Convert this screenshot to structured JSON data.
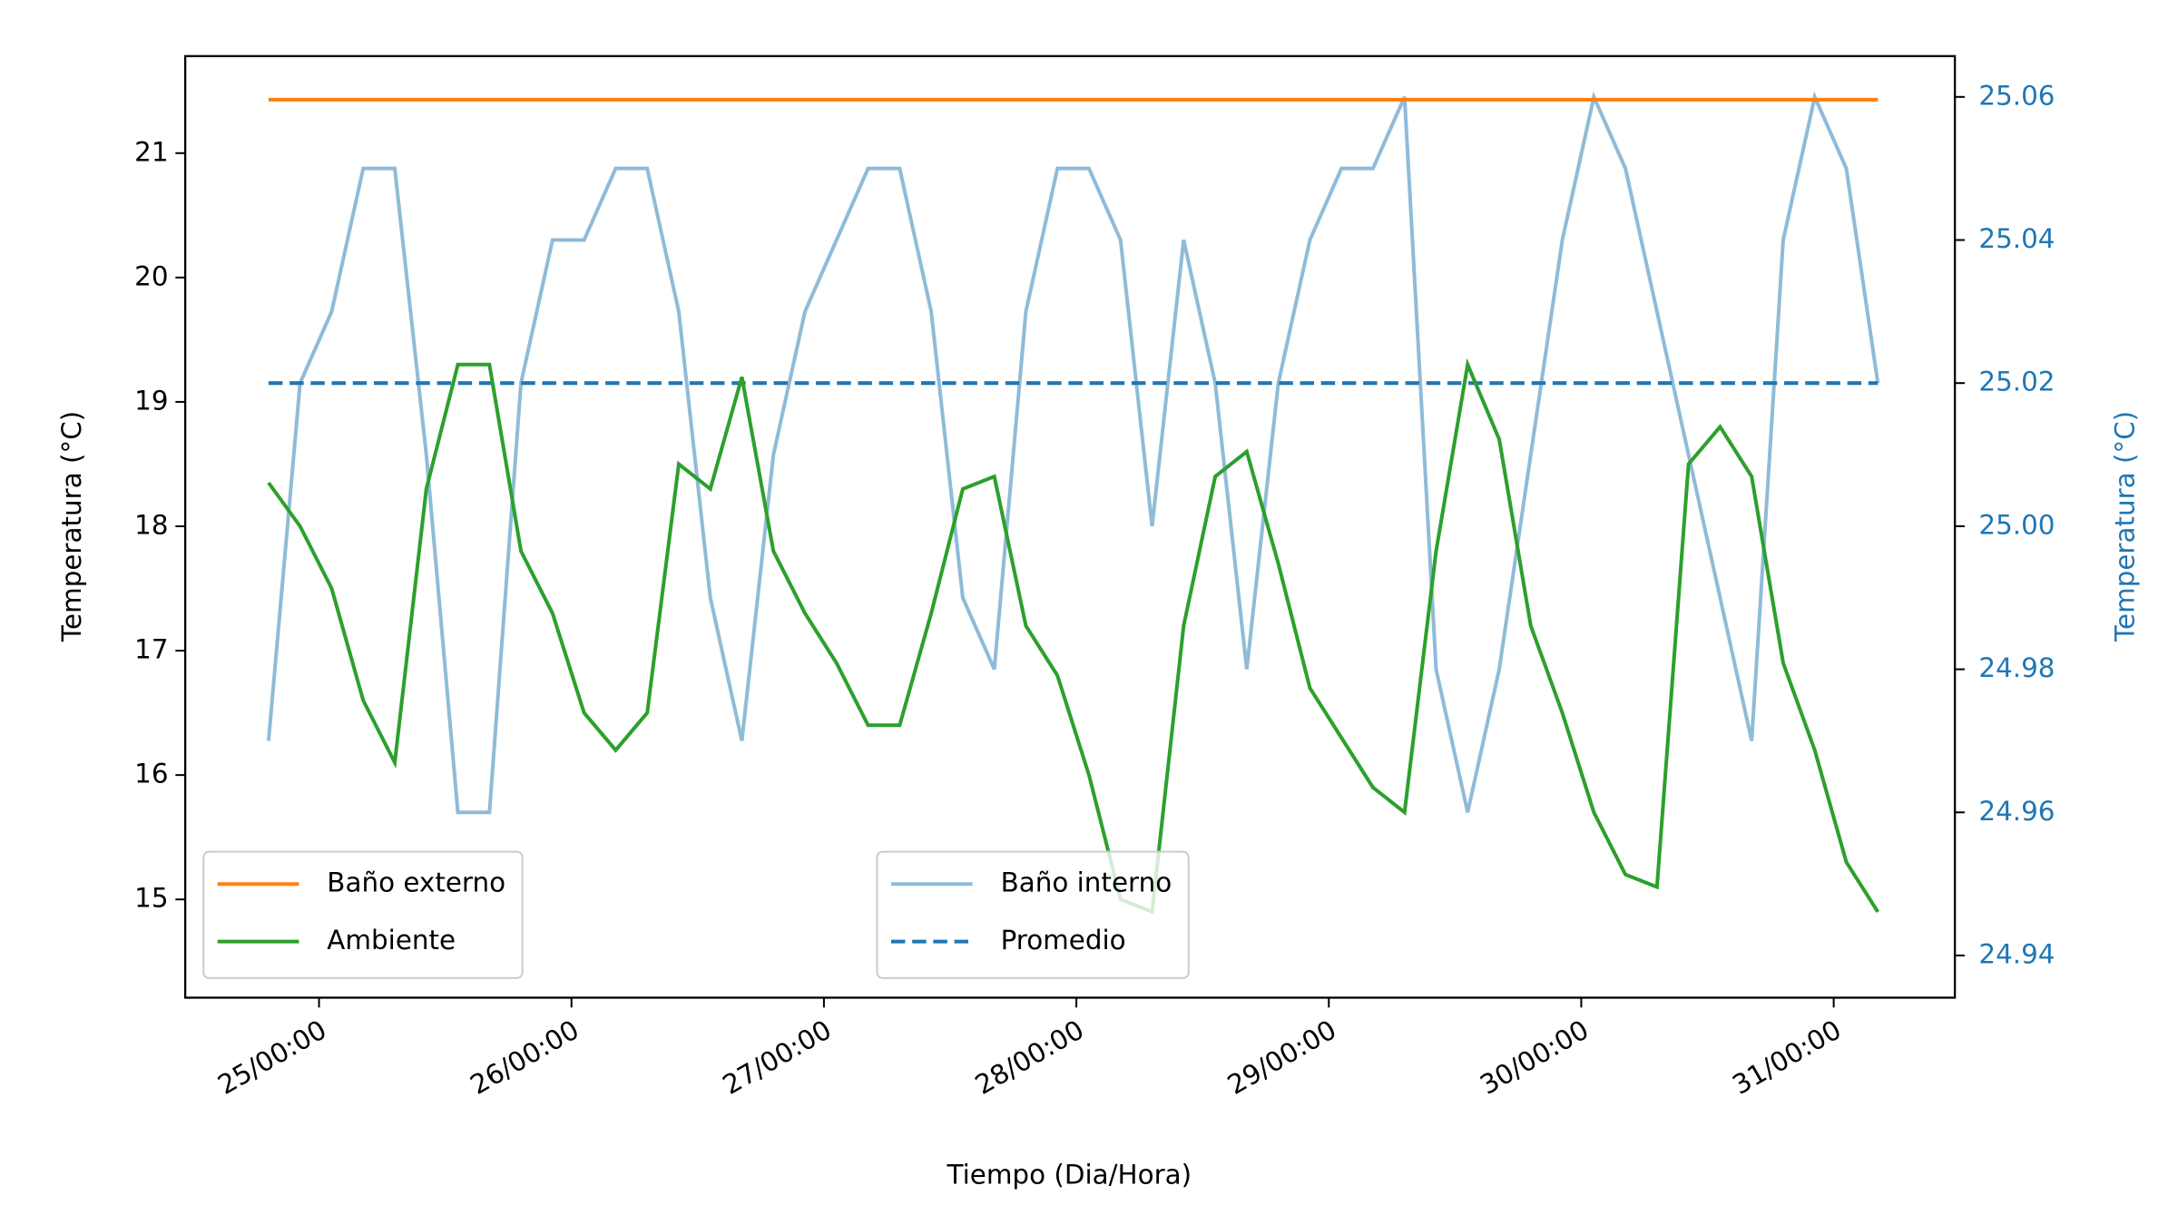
{
  "chart_data": {
    "type": "line",
    "xlabel": "Tiempo (Dia/Hora)",
    "ylabel": "Temperatura ($^\\circ$C)",
    "y2label": "Temperatura ($^\\circ$C)",
    "y2color": "#1f77b4",
    "x": [
      24.8,
      24.925,
      25.05,
      25.175,
      25.3,
      25.425,
      25.55,
      25.675,
      25.8,
      25.925,
      26.05,
      26.175,
      26.3,
      26.425,
      26.55,
      26.675,
      26.8,
      26.925,
      27.05,
      27.175,
      27.3,
      27.425,
      27.55,
      27.675,
      27.8,
      27.925,
      28.05,
      28.175,
      28.3,
      28.425,
      28.55,
      28.675,
      28.8,
      28.925,
      29.05,
      29.175,
      29.3,
      29.425,
      29.55,
      29.675,
      29.8,
      29.925,
      30.05,
      30.175,
      30.3,
      30.425,
      30.55,
      30.675,
      30.8,
      30.925,
      31.05,
      31.175
    ],
    "xlim": [
      24.47,
      31.48
    ],
    "xticks": [
      {
        "value": 25,
        "label": "25/00:00"
      },
      {
        "value": 26,
        "label": "26/00:00"
      },
      {
        "value": 27,
        "label": "27/00:00"
      },
      {
        "value": 28,
        "label": "28/00:00"
      },
      {
        "value": 29,
        "label": "29/00:00"
      },
      {
        "value": 30,
        "label": "30/00:00"
      },
      {
        "value": 31,
        "label": "31/00:00"
      }
    ],
    "ylim": [
      14.21,
      21.78
    ],
    "yticks": [
      15,
      16,
      17,
      18,
      19,
      20,
      21
    ],
    "y2lim": [
      24.9341,
      25.0657
    ],
    "y2ticks": [
      24.94,
      24.96,
      24.98,
      {
        "value": 25,
        "label": "25.00"
      },
      25.02,
      25.04,
      25.06
    ],
    "series": [
      {
        "name": "Baño externo",
        "color": "#ff7f0e",
        "linestyle": "solid",
        "legend_loc": "lower left",
        "values": [
          21.43,
          21.43,
          21.43,
          21.43,
          21.43,
          21.43,
          21.43,
          21.43,
          21.43,
          21.43,
          21.43,
          21.43,
          21.43,
          21.43,
          21.43,
          21.43,
          21.43,
          21.43,
          21.43,
          21.43,
          21.43,
          21.43,
          21.43,
          21.43,
          21.43,
          21.43,
          21.43,
          21.43,
          21.43,
          21.43,
          21.43,
          21.43,
          21.43,
          21.43,
          21.43,
          21.43,
          21.43,
          21.43,
          21.43,
          21.43,
          21.43,
          21.43,
          21.43,
          21.43,
          21.43,
          21.43,
          21.43,
          21.43,
          21.43,
          21.43,
          21.43,
          21.43
        ]
      },
      {
        "name": "Ambiente",
        "color": "#2ca02c",
        "linestyle": "solid",
        "legend_loc": "lower left",
        "values": [
          18.35,
          18.0,
          17.5,
          16.6,
          16.1,
          18.3,
          19.3,
          19.3,
          17.8,
          17.3,
          16.5,
          16.2,
          16.5,
          18.5,
          18.3,
          19.2,
          17.8,
          17.3,
          16.9,
          16.4,
          16.4,
          17.3,
          18.3,
          18.4,
          17.2,
          16.8,
          16.0,
          15.0,
          14.9,
          17.2,
          18.4,
          18.6,
          17.7,
          16.7,
          16.3,
          15.9,
          15.7,
          17.8,
          19.3,
          18.7,
          17.2,
          16.5,
          15.7,
          15.2,
          15.1,
          18.5,
          18.8,
          18.4,
          16.9,
          16.2,
          15.3,
          14.9
        ]
      },
      {
        "name": "Baño interno",
        "color": "#8fbbd9",
        "linestyle": "solid",
        "axis": "y2",
        "legend_loc": "lower center",
        "values": [
          24.97,
          25.02,
          25.03,
          25.05,
          25.05,
          25.01,
          24.96,
          24.96,
          25.02,
          25.04,
          25.04,
          25.05,
          25.05,
          25.03,
          24.99,
          24.97,
          25.01,
          25.03,
          25.04,
          25.05,
          25.05,
          25.03,
          24.99,
          24.98,
          25.03,
          25.05,
          25.05,
          25.04,
          25.0,
          25.04,
          25.02,
          24.98,
          25.02,
          25.04,
          25.05,
          25.05,
          25.06,
          24.98,
          24.96,
          24.98,
          25.01,
          25.04,
          25.06,
          25.05,
          25.03,
          25.01,
          24.99,
          24.97,
          25.04,
          25.06,
          25.05,
          25.02
        ]
      },
      {
        "name": "Promedio",
        "color": "#1f77b4",
        "linestyle": "dashed",
        "axis": "y2",
        "legend_loc": "lower center",
        "values": [
          25.02,
          25.02,
          25.02,
          25.02,
          25.02,
          25.02,
          25.02,
          25.02,
          25.02,
          25.02,
          25.02,
          25.02,
          25.02,
          25.02,
          25.02,
          25.02,
          25.02,
          25.02,
          25.02,
          25.02,
          25.02,
          25.02,
          25.02,
          25.02,
          25.02,
          25.02,
          25.02,
          25.02,
          25.02,
          25.02,
          25.02,
          25.02,
          25.02,
          25.02,
          25.02,
          25.02,
          25.02,
          25.02,
          25.02,
          25.02,
          25.02,
          25.02,
          25.02,
          25.02,
          25.02,
          25.02,
          25.02,
          25.02,
          25.02,
          25.02,
          25.02,
          25.02
        ]
      }
    ]
  }
}
